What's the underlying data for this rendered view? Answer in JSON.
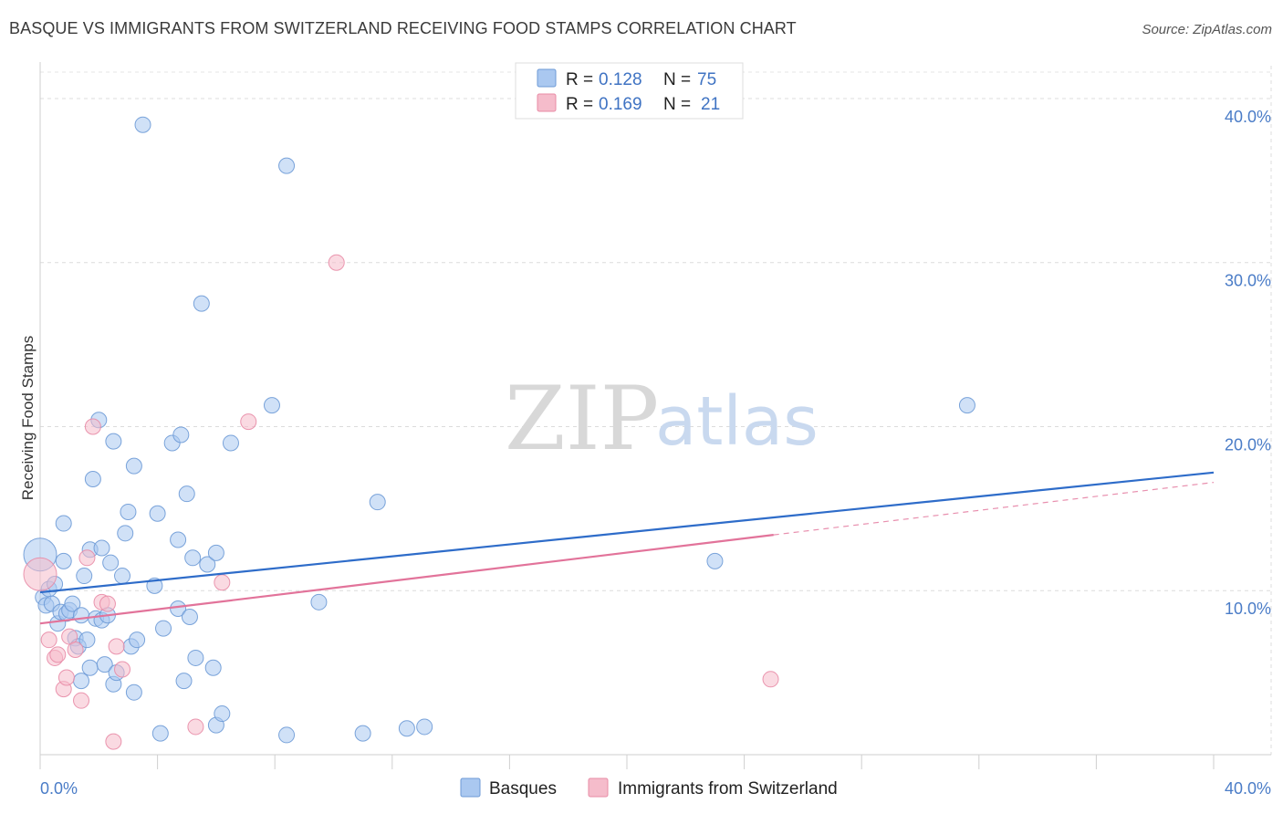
{
  "header": {
    "title": "BASQUE VS IMMIGRANTS FROM SWITZERLAND RECEIVING FOOD STAMPS CORRELATION CHART",
    "source": "Source: ZipAtlas.com"
  },
  "watermark": {
    "zip": "ZIP",
    "atlas": "atlas"
  },
  "legend": {
    "series": [
      {
        "r_label": "R =",
        "r_value": "0.128",
        "n_label": "N =",
        "n_value": "75"
      },
      {
        "r_label": "R =",
        "r_value": "0.169",
        "n_label": "N =",
        "n_value": "21"
      }
    ]
  },
  "colors": {
    "blue_fill": "#aac8f0",
    "blue_stroke": "#6d9ad6",
    "blue_line": "#2e6cc9",
    "pink_fill": "#f5bccb",
    "pink_stroke": "#e88ba6",
    "pink_line": "#e2739a"
  },
  "chart_data": {
    "type": "scatter",
    "title": "BASQUE VS IMMIGRANTS FROM SWITZERLAND RECEIVING FOOD STAMPS CORRELATION CHART",
    "xlabel": "",
    "ylabel": "Receiving Food Stamps",
    "xlim": [
      0,
      40
    ],
    "ylim": [
      0,
      42
    ],
    "x_tick_labels": [
      {
        "value": 0,
        "label": "0.0%"
      },
      {
        "value": 40,
        "label": "40.0%"
      }
    ],
    "y_tick_labels": [
      {
        "value": 10,
        "label": "10.0%"
      },
      {
        "value": 20,
        "label": "20.0%"
      },
      {
        "value": 30,
        "label": "30.0%"
      },
      {
        "value": 40,
        "label": "40.0%"
      }
    ],
    "legend_position": "bottom",
    "series": [
      {
        "name": "Basques",
        "r": 0.128,
        "n": 75,
        "trend": {
          "x": [
            0,
            40
          ],
          "y": [
            9.9,
            17.2
          ]
        },
        "points": [
          {
            "x": 0.0,
            "y": 12.2,
            "big": true
          },
          {
            "x": 0.1,
            "y": 9.6
          },
          {
            "x": 0.2,
            "y": 9.1
          },
          {
            "x": 0.3,
            "y": 10.1
          },
          {
            "x": 0.4,
            "y": 9.2
          },
          {
            "x": 0.5,
            "y": 10.4
          },
          {
            "x": 0.6,
            "y": 8.0
          },
          {
            "x": 0.7,
            "y": 8.7
          },
          {
            "x": 0.8,
            "y": 14.1
          },
          {
            "x": 0.8,
            "y": 11.8
          },
          {
            "x": 0.9,
            "y": 8.6
          },
          {
            "x": 1.0,
            "y": 8.8
          },
          {
            "x": 1.1,
            "y": 9.2
          },
          {
            "x": 1.2,
            "y": 7.1
          },
          {
            "x": 1.3,
            "y": 6.6
          },
          {
            "x": 1.4,
            "y": 4.5
          },
          {
            "x": 1.4,
            "y": 8.5
          },
          {
            "x": 1.5,
            "y": 10.9
          },
          {
            "x": 1.6,
            "y": 7.0
          },
          {
            "x": 1.7,
            "y": 5.3
          },
          {
            "x": 1.7,
            "y": 12.5
          },
          {
            "x": 1.8,
            "y": 16.8
          },
          {
            "x": 1.9,
            "y": 8.3
          },
          {
            "x": 2.0,
            "y": 20.4
          },
          {
            "x": 2.1,
            "y": 8.2
          },
          {
            "x": 2.1,
            "y": 12.6
          },
          {
            "x": 2.2,
            "y": 5.5
          },
          {
            "x": 2.3,
            "y": 8.5
          },
          {
            "x": 2.4,
            "y": 11.7
          },
          {
            "x": 2.5,
            "y": 19.1
          },
          {
            "x": 2.5,
            "y": 4.3
          },
          {
            "x": 2.6,
            "y": 5.0
          },
          {
            "x": 2.8,
            "y": 10.9
          },
          {
            "x": 2.9,
            "y": 13.5
          },
          {
            "x": 3.0,
            "y": 14.8
          },
          {
            "x": 3.1,
            "y": 6.6
          },
          {
            "x": 3.2,
            "y": 3.8
          },
          {
            "x": 3.2,
            "y": 17.6
          },
          {
            "x": 3.3,
            "y": 7.0
          },
          {
            "x": 3.5,
            "y": 38.4
          },
          {
            "x": 3.9,
            "y": 10.3
          },
          {
            "x": 4.0,
            "y": 14.7
          },
          {
            "x": 4.1,
            "y": 1.3
          },
          {
            "x": 4.2,
            "y": 7.7
          },
          {
            "x": 4.5,
            "y": 19.0
          },
          {
            "x": 4.7,
            "y": 8.9
          },
          {
            "x": 4.7,
            "y": 13.1
          },
          {
            "x": 4.8,
            "y": 19.5
          },
          {
            "x": 4.9,
            "y": 4.5
          },
          {
            "x": 5.0,
            "y": 15.9
          },
          {
            "x": 5.1,
            "y": 8.4
          },
          {
            "x": 5.2,
            "y": 12.0
          },
          {
            "x": 5.3,
            "y": 5.9
          },
          {
            "x": 5.5,
            "y": 27.5
          },
          {
            "x": 5.7,
            "y": 11.6
          },
          {
            "x": 5.9,
            "y": 5.3
          },
          {
            "x": 6.0,
            "y": 12.3
          },
          {
            "x": 6.0,
            "y": 1.8
          },
          {
            "x": 6.2,
            "y": 2.5
          },
          {
            "x": 6.5,
            "y": 19.0
          },
          {
            "x": 7.9,
            "y": 21.3
          },
          {
            "x": 8.4,
            "y": 35.9
          },
          {
            "x": 8.4,
            "y": 1.2
          },
          {
            "x": 9.5,
            "y": 9.3
          },
          {
            "x": 11.0,
            "y": 1.3
          },
          {
            "x": 11.5,
            "y": 15.4
          },
          {
            "x": 12.5,
            "y": 1.6
          },
          {
            "x": 13.1,
            "y": 1.7
          },
          {
            "x": 23.0,
            "y": 11.8
          },
          {
            "x": 31.6,
            "y": 21.3
          }
        ]
      },
      {
        "name": "Immigrants from Switzerland",
        "r": 0.169,
        "n": 21,
        "trend": {
          "x": [
            0,
            25
          ],
          "y": [
            8.0,
            13.4
          ]
        },
        "trend_dashed": {
          "x": [
            25,
            40
          ],
          "y": [
            13.4,
            16.6
          ]
        },
        "points": [
          {
            "x": 0.0,
            "y": 11.0,
            "big": true
          },
          {
            "x": 0.3,
            "y": 7.0
          },
          {
            "x": 0.5,
            "y": 5.9
          },
          {
            "x": 0.6,
            "y": 6.1
          },
          {
            "x": 0.8,
            "y": 4.0
          },
          {
            "x": 0.9,
            "y": 4.7
          },
          {
            "x": 1.0,
            "y": 7.2
          },
          {
            "x": 1.2,
            "y": 6.4
          },
          {
            "x": 1.4,
            "y": 3.3
          },
          {
            "x": 1.6,
            "y": 12.0
          },
          {
            "x": 1.8,
            "y": 20.0
          },
          {
            "x": 2.1,
            "y": 9.3
          },
          {
            "x": 2.3,
            "y": 9.2
          },
          {
            "x": 2.5,
            "y": 0.8
          },
          {
            "x": 2.6,
            "y": 6.6
          },
          {
            "x": 2.8,
            "y": 5.2
          },
          {
            "x": 5.3,
            "y": 1.7
          },
          {
            "x": 6.2,
            "y": 10.5
          },
          {
            "x": 7.1,
            "y": 20.3
          },
          {
            "x": 10.1,
            "y": 30.0
          },
          {
            "x": 24.9,
            "y": 4.6
          }
        ]
      }
    ]
  },
  "bottom_legend": {
    "items": [
      {
        "label": "Basques"
      },
      {
        "label": "Immigrants from Switzerland"
      }
    ]
  }
}
